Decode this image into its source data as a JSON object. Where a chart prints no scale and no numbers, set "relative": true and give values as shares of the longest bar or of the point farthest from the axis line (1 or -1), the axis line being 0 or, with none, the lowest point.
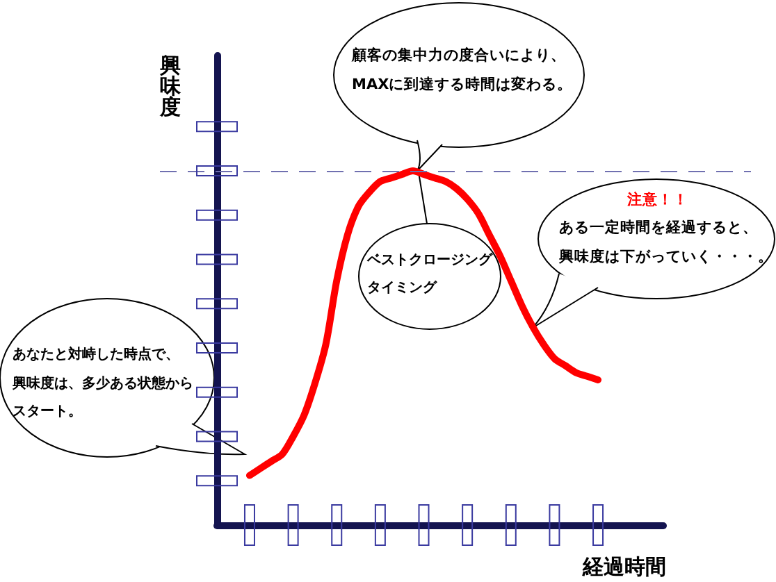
{
  "chart_data": {
    "type": "line",
    "relative": true,
    "xlabel": "経過時間",
    "ylabel": "興味度",
    "marker": "none",
    "categories": [
      null,
      null,
      null,
      null,
      null,
      null,
      null,
      null,
      null,
      null,
      null,
      null,
      null,
      null,
      null,
      null,
      null,
      null,
      null,
      null,
      null,
      null,
      null,
      null,
      null,
      null,
      null,
      null,
      null,
      null,
      null,
      null,
      null,
      null,
      null,
      null,
      null,
      null,
      null,
      null,
      null,
      null
    ],
    "series": [
      {
        "color": "#ff0000",
        "values": [
          null,
          null,
          null,
          0.14,
          0.16,
          0.18,
          0.2,
          0.25,
          0.31,
          0.4,
          0.51,
          0.69,
          0.82,
          0.9,
          0.94,
          0.97,
          0.98,
          0.99,
          1,
          0.99,
          0.98,
          0.97,
          0.95,
          0.92,
          0.88,
          0.82,
          0.76,
          0.69,
          0.62,
          0.56,
          0.51,
          0.47,
          0.45,
          0.43,
          0.42,
          0.41,
          null,
          null,
          null,
          null,
          null,
          null
        ]
      }
    ],
    "ref_lines": [
      {
        "axis": "y",
        "value": 1,
        "color": "#7070b0",
        "line_style": "dashed"
      }
    ],
    "annotations": [
      "顧客の集中力の度合いにより、MAXに到達する時間は変わる。",
      "ベストクロージングタイミング",
      "注意！！",
      "ある一定時間を経過すると、興味度は下がっていく・・・。",
      "あなたと対峙した時点で、興味度は、多少ある状態からスタート。"
    ]
  }
}
